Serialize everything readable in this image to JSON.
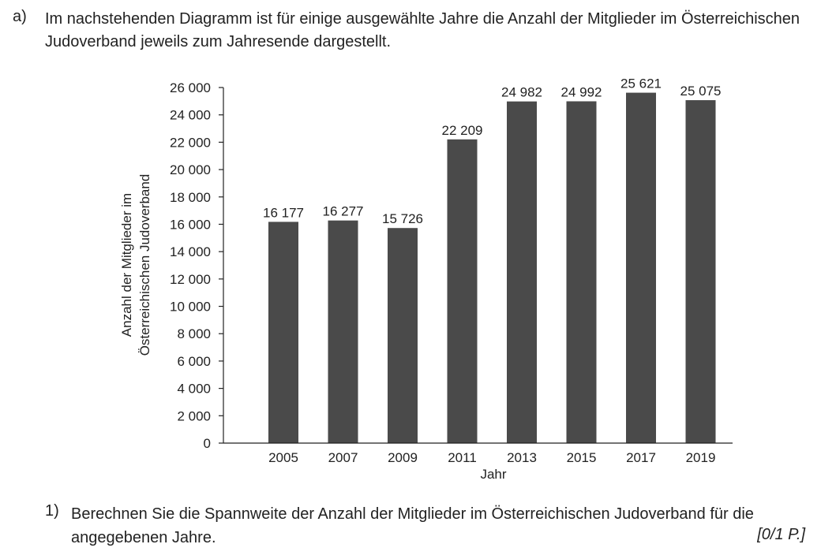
{
  "task": {
    "label": "a)",
    "intro": "Im nachstehenden Diagramm ist für einige ausgewählte Jahre die Anzahl der Mitglieder im Österreichischen Judoverband jeweils zum Jahresende dargestellt."
  },
  "chart_data": {
    "type": "bar",
    "categories": [
      "2005",
      "2007",
      "2009",
      "2011",
      "2013",
      "2015",
      "2017",
      "2019"
    ],
    "values": [
      16177,
      16277,
      15726,
      22209,
      24982,
      24992,
      25621,
      25075
    ],
    "value_labels": [
      "16 177",
      "16 277",
      "15 726",
      "22 209",
      "24 982",
      "24 992",
      "25 621",
      "25 075"
    ],
    "xlabel": "Jahr",
    "ylabel": [
      "Anzahl der Mitglieder im",
      "Österreichischen Judoverband"
    ],
    "ylim": [
      0,
      26000
    ],
    "y_ticks": [
      0,
      2000,
      4000,
      6000,
      8000,
      10000,
      12000,
      14000,
      16000,
      18000,
      20000,
      22000,
      24000,
      26000
    ],
    "y_tick_labels": [
      "0",
      "2 000",
      "4 000",
      "6 000",
      "8 000",
      "10 000",
      "12 000",
      "14 000",
      "16 000",
      "18 000",
      "20 000",
      "22 000",
      "24 000",
      "26 000"
    ],
    "grid": false,
    "bar_color": "#4a4a4a"
  },
  "question": {
    "label": "1)",
    "text": "Berechnen Sie die Spannweite der Anzahl der Mitglieder im Österreichischen Judoverband für die angegebenen Jahre.",
    "points": "[0/1 P.]"
  }
}
